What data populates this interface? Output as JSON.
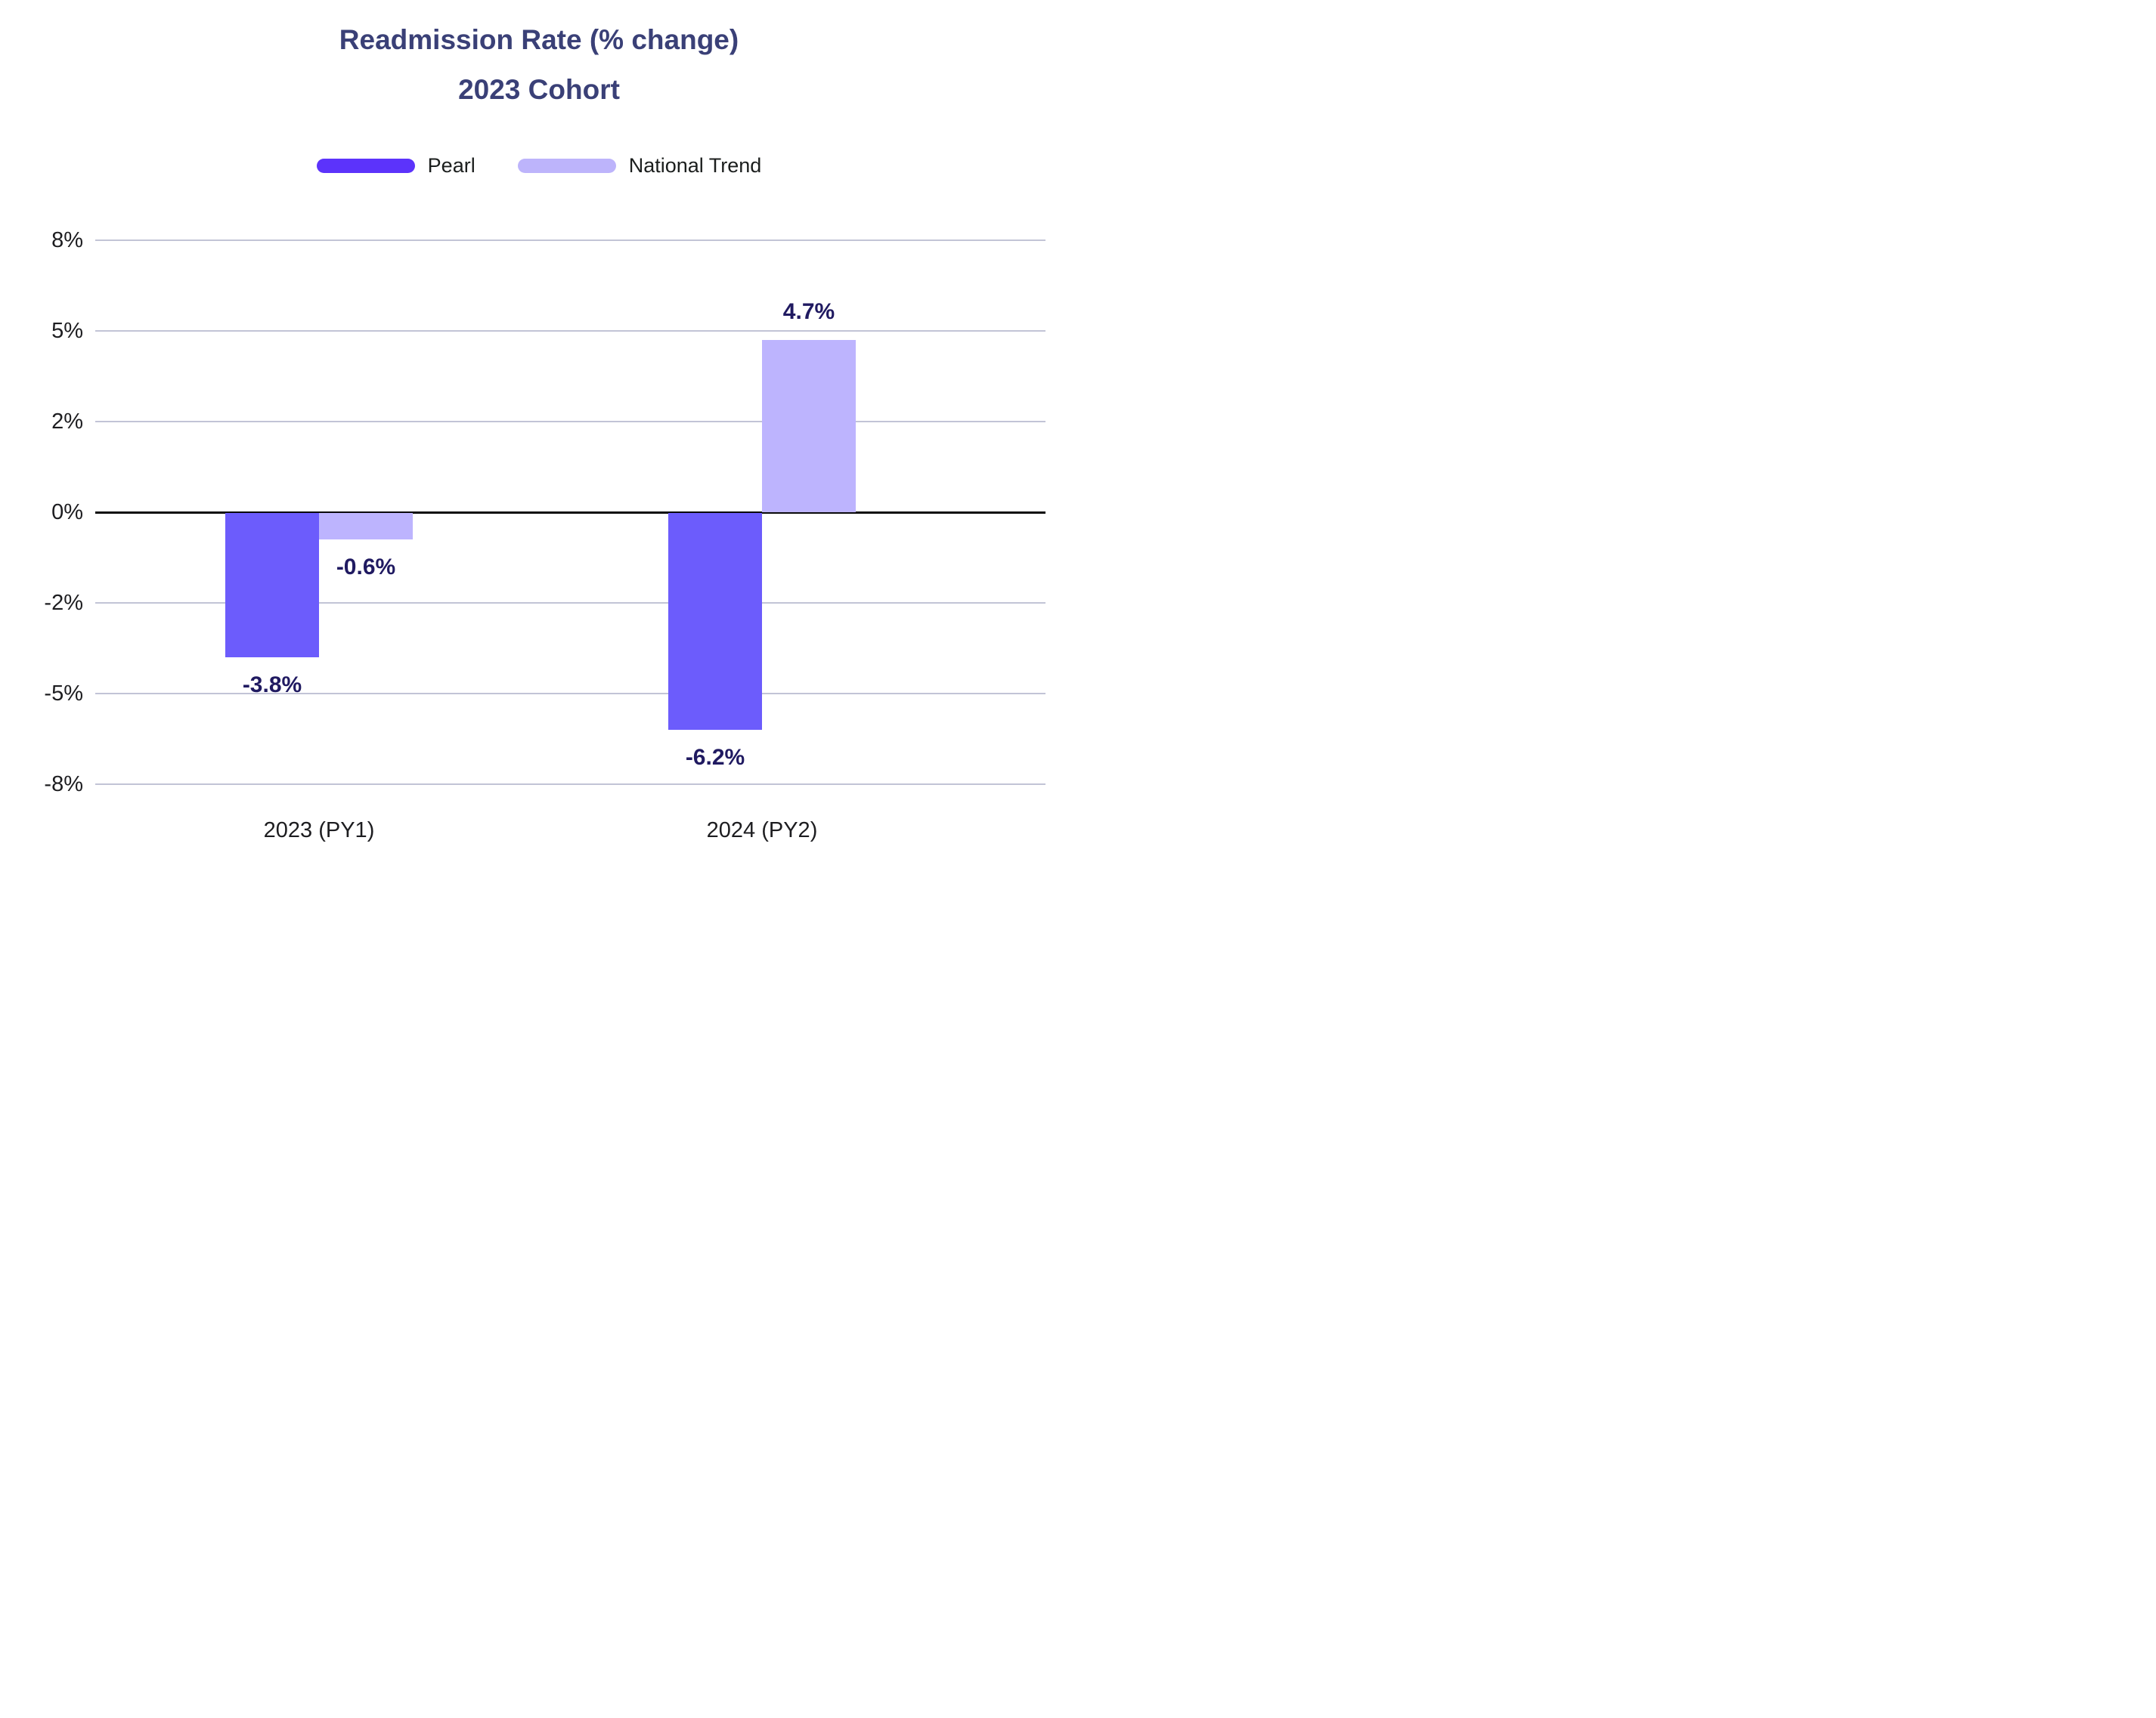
{
  "title": {
    "line1": "Readmission Rate (% change)",
    "line2": "2023 Cohort"
  },
  "legend": [
    {
      "label": "Pearl",
      "color": "#5c33fb"
    },
    {
      "label": "National Trend",
      "color": "#bdb4fb"
    }
  ],
  "colors": {
    "title_text": "#3a4077",
    "legend_text": "#1b1e1d",
    "axis_text": "#1d1d20",
    "data_label_text": "#201a61",
    "gridline": "#c2c4d6",
    "zero_line": "#0a0a0a",
    "pearl_bar": "#6c5cfc",
    "national_trend_bar": "#bdb4fe",
    "background": "#ffffff"
  },
  "chart_data": {
    "type": "bar",
    "title": "Readmission Rate (% change)",
    "subtitle": "2023 Cohort",
    "categories": [
      "2023 (PY1)",
      "2024 (PY2)"
    ],
    "series": [
      {
        "name": "Pearl",
        "values": [
          -3.8,
          -6.2
        ],
        "data_labels": [
          "-3.8%",
          "-6.2%"
        ],
        "color": "#6c5cfc"
      },
      {
        "name": "National Trend",
        "values": [
          -0.6,
          4.7
        ],
        "data_labels": [
          "-0.6%",
          "4.7%"
        ],
        "color": "#bdb4fe"
      }
    ],
    "xlabel": "",
    "ylabel": "",
    "y_ticks": [
      8,
      5,
      2,
      0,
      -2,
      -5,
      -8
    ],
    "y_tick_labels": [
      "8%",
      "5%",
      "2%",
      "0%",
      "-2%",
      "-5%",
      "-8%"
    ],
    "ylim": [
      8,
      -8
    ],
    "grid": "horizontal-only, evenly spaced ticks",
    "legend_position": "top"
  }
}
